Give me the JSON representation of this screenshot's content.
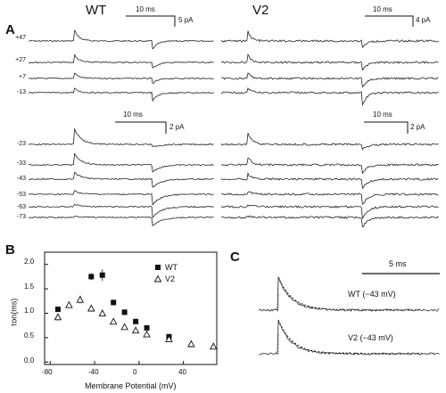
{
  "panel_a": {
    "letter": "A",
    "left_title": "WT",
    "right_title": "V2",
    "wt_top_voltages": [
      "+47",
      "+27",
      "+7",
      "-13"
    ],
    "wt_bottom_voltages": [
      "-23",
      "-33",
      "-43",
      "-53",
      "-63",
      "-73"
    ],
    "wt_top_scale": {
      "time": "10 ms",
      "current": "5 pA"
    },
    "wt_bottom_scale": {
      "time": "10 ms",
      "current": "2 pA"
    },
    "v2_top_scale": {
      "time": "10 ms",
      "current": "4 pA"
    },
    "v2_bottom_scale": {
      "time": "10 ms",
      "current": "2 pA"
    }
  },
  "panel_b": {
    "letter": "B",
    "legend_wt": "WT",
    "legend_v2": "V2",
    "ylabel": "τon(ms)",
    "xlabel": "Membrane Potential (mV)",
    "y_ticks": [
      "2.0",
      "1.5",
      "1.0",
      "0.5",
      "0.0"
    ],
    "x_ticks": [
      "-80",
      "-40",
      "0",
      "40"
    ]
  },
  "panel_c": {
    "letter": "C",
    "scale": "5 ms",
    "wt_label": "WT (−43 mV)",
    "v2_label": "V2 (−43 mV)"
  },
  "chart_data": {
    "type": "scatter",
    "xlabel": "Membrane Potential (mV)",
    "ylabel": "τon(ms)",
    "xlim": [
      -85,
      70
    ],
    "ylim": [
      -0.05,
      2.25
    ],
    "series": [
      {
        "name": "WT",
        "marker": "filled-square",
        "color": "#111111",
        "x": [
          -73,
          -43,
          -33,
          -23,
          -13,
          -3,
          7,
          27
        ],
        "y": [
          1.08,
          1.75,
          1.78,
          1.22,
          1.02,
          0.83,
          0.7,
          0.52
        ],
        "err": [
          0.05,
          0.07,
          0.12,
          0.06,
          0.06,
          0.05,
          0.04,
          0.04
        ]
      },
      {
        "name": "V2",
        "marker": "open-triangle",
        "color": "#111111",
        "x": [
          -73,
          -63,
          -53,
          -43,
          -33,
          -23,
          -13,
          -3,
          7,
          27,
          47,
          67
        ],
        "y": [
          0.92,
          1.17,
          1.28,
          1.1,
          1.0,
          0.83,
          0.72,
          0.65,
          0.57,
          0.47,
          0.37,
          0.32
        ],
        "err": [
          0.07,
          0.06,
          0.08,
          0.05,
          0.04,
          0.04,
          0.04,
          0.03,
          0.03,
          0.03,
          0.03,
          0.02
        ]
      }
    ]
  }
}
